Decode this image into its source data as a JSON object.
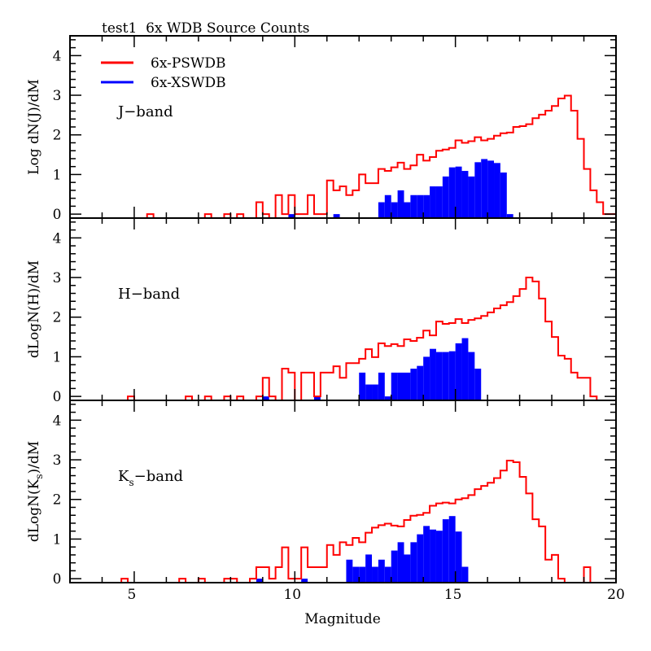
{
  "chart_data": {
    "type": "bar",
    "title": "test1  6x WDB Source Counts",
    "xlabel": "Magnitude",
    "xlim": [
      3,
      20
    ],
    "x_ticks": [
      5,
      10,
      15,
      20
    ],
    "bin_width": 0.2,
    "legend": {
      "placement": "top-left",
      "entries": [
        {
          "name": "6x-PSWDB",
          "color": "#ff0000",
          "style": "step-line"
        },
        {
          "name": "6x-XSWDB",
          "color": "#0000ff",
          "style": "filled"
        }
      ]
    },
    "panels": [
      {
        "band_label": {
          "pre": "J",
          "sub": "",
          "post": "−band"
        },
        "ylabel": {
          "pre": "Log dN(J",
          "sub": "",
          "post": ")/dM"
        },
        "ylim": [
          -0.1,
          4.5
        ],
        "y_ticks": [
          0,
          1,
          2,
          3,
          4
        ],
        "series": [
          {
            "name": "6x-PSWDB",
            "bin_starts": [
              5.4,
              7.2,
              7.8,
              8.2,
              8.8,
              9.0,
              9.4,
              9.6,
              9.8,
              10.0,
              10.2,
              10.4,
              10.6,
              10.8,
              11.0,
              11.2,
              11.4,
              11.6,
              11.8,
              12.0,
              12.2,
              12.4,
              12.6,
              12.8,
              13.0,
              13.2,
              13.4,
              13.6,
              13.8,
              14.0,
              14.2,
              14.4,
              14.6,
              14.8,
              15.0,
              15.2,
              15.4,
              15.6,
              15.8,
              16.0,
              16.2,
              16.4,
              16.6,
              16.8,
              17.0,
              17.2,
              17.4,
              17.6,
              17.8,
              18.0,
              18.2,
              18.4,
              18.6,
              18.8,
              19.0,
              19.2,
              19.4,
              19.6,
              19.8
            ],
            "values": [
              0,
              0,
              0,
              0,
              0.3,
              0,
              0.48,
              0,
              0.48,
              0,
              0,
              0.48,
              0,
              0,
              0.85,
              0.6,
              0.7,
              0.48,
              0.6,
              1.0,
              0.78,
              0.78,
              1.14,
              1.09,
              1.18,
              1.3,
              1.14,
              1.23,
              1.5,
              1.35,
              1.44,
              1.6,
              1.63,
              1.67,
              1.86,
              1.8,
              1.84,
              1.94,
              1.86,
              1.9,
              1.98,
              2.04,
              2.06,
              2.2,
              2.22,
              2.27,
              2.42,
              2.51,
              2.61,
              2.73,
              2.92,
              2.99,
              2.61,
              1.9,
              1.14,
              0.6,
              0.3,
              0,
              0
            ]
          },
          {
            "name": "6x-XSWDB",
            "bin_starts": [
              9.8,
              11.2,
              12.6,
              12.8,
              13.0,
              13.2,
              13.4,
              13.6,
              13.8,
              14.0,
              14.2,
              14.4,
              14.6,
              14.8,
              15.0,
              15.2,
              15.4,
              15.6,
              15.8,
              16.0,
              16.2,
              16.4,
              16.6
            ],
            "values": [
              0,
              0,
              0.3,
              0.48,
              0.3,
              0.6,
              0.3,
              0.48,
              0.48,
              0.48,
              0.7,
              0.7,
              0.95,
              1.18,
              1.2,
              1.09,
              0.95,
              1.31,
              1.39,
              1.35,
              1.29,
              1.05,
              0
            ]
          }
        ]
      },
      {
        "band_label": {
          "pre": "H",
          "sub": "",
          "post": "−band"
        },
        "ylabel": {
          "pre": "dLogN(H",
          "sub": "",
          "post": ")/dM"
        },
        "ylim": [
          -0.1,
          4.5
        ],
        "y_ticks": [
          0,
          1,
          2,
          3,
          4
        ],
        "series": [
          {
            "name": "6x-PSWDB",
            "bin_starts": [
              4.8,
              6.6,
              7.2,
              7.8,
              8.2,
              8.8,
              9.0,
              9.2,
              9.6,
              9.8,
              10.2,
              10.4,
              10.6,
              10.8,
              11.0,
              11.2,
              11.4,
              11.6,
              11.8,
              12.0,
              12.2,
              12.4,
              12.6,
              12.8,
              13.0,
              13.2,
              13.4,
              13.6,
              13.8,
              14.0,
              14.2,
              14.4,
              14.6,
              14.8,
              15.0,
              15.2,
              15.4,
              15.6,
              15.8,
              16.0,
              16.2,
              16.4,
              16.6,
              16.8,
              17.0,
              17.2,
              17.4,
              17.6,
              17.8,
              18.0,
              18.2,
              18.4,
              18.6,
              18.8,
              19.0,
              19.2
            ],
            "values": [
              0,
              0,
              0,
              0,
              0,
              0,
              0.47,
              0,
              0.7,
              0.6,
              0.6,
              0.6,
              0,
              0.6,
              0.6,
              0.76,
              0.47,
              0.84,
              0.84,
              0.95,
              1.19,
              0.99,
              1.34,
              1.27,
              1.32,
              1.27,
              1.44,
              1.4,
              1.48,
              1.66,
              1.54,
              1.89,
              1.83,
              1.85,
              1.95,
              1.85,
              1.93,
              1.97,
              2.03,
              2.12,
              2.22,
              2.3,
              2.38,
              2.53,
              2.71,
              3.0,
              2.9,
              2.47,
              1.89,
              1.5,
              1.03,
              0.95,
              0.6,
              0.47,
              0.47,
              0
            ]
          },
          {
            "name": "6x-XSWDB",
            "bin_starts": [
              9.0,
              10.6,
              12.0,
              12.2,
              12.4,
              12.6,
              12.8,
              13.0,
              13.2,
              13.4,
              13.6,
              13.8,
              14.0,
              14.2,
              14.4,
              14.6,
              14.8,
              15.0,
              15.2,
              15.4,
              15.6
            ],
            "values": [
              0,
              0,
              0.6,
              0.3,
              0.3,
              0.6,
              0,
              0.6,
              0.6,
              0.6,
              0.7,
              0.77,
              1.0,
              1.2,
              1.12,
              1.12,
              1.14,
              1.34,
              1.47,
              1.12,
              0.7
            ]
          }
        ]
      },
      {
        "band_label": {
          "pre": "K",
          "sub": "s",
          "post": "−band"
        },
        "ylabel": {
          "pre": "dLogN(K",
          "sub": "s",
          "post": ")/dM"
        },
        "ylim": [
          -0.1,
          4.5
        ],
        "y_ticks": [
          0,
          1,
          2,
          3,
          4
        ],
        "series": [
          {
            "name": "6x-PSWDB",
            "bin_starts": [
              4.6,
              6.4,
              7.0,
              7.8,
              8.0,
              8.6,
              8.8,
              9.0,
              9.2,
              9.4,
              9.6,
              9.8,
              10.0,
              10.2,
              10.4,
              10.6,
              10.8,
              11.0,
              11.2,
              11.4,
              11.6,
              11.8,
              12.0,
              12.2,
              12.4,
              12.6,
              12.8,
              13.0,
              13.2,
              13.4,
              13.6,
              13.8,
              14.0,
              14.2,
              14.4,
              14.6,
              14.8,
              15.0,
              15.2,
              15.4,
              15.6,
              15.8,
              16.0,
              16.2,
              16.4,
              16.6,
              16.8,
              17.0,
              17.2,
              17.4,
              17.6,
              17.8,
              18.0,
              18.2,
              19.0
            ],
            "values": [
              0,
              0,
              0,
              0,
              0,
              0,
              0.29,
              0.29,
              0,
              0.29,
              0.79,
              0,
              0,
              0.79,
              0.29,
              0.29,
              0.29,
              0.85,
              0.6,
              0.92,
              0.85,
              1.03,
              0.92,
              1.16,
              1.29,
              1.35,
              1.39,
              1.34,
              1.32,
              1.48,
              1.59,
              1.61,
              1.66,
              1.84,
              1.9,
              1.92,
              1.9,
              2.0,
              2.03,
              2.11,
              2.26,
              2.34,
              2.42,
              2.54,
              2.73,
              2.98,
              2.94,
              2.57,
              2.15,
              1.5,
              1.32,
              0.48,
              0.6,
              0,
              0.29
            ]
          },
          {
            "name": "6x-XSWDB",
            "bin_starts": [
              8.8,
              10.2,
              11.6,
              11.8,
              12.0,
              12.2,
              12.4,
              12.6,
              12.8,
              13.0,
              13.2,
              13.4,
              13.6,
              13.8,
              14.0,
              14.2,
              14.4,
              14.6,
              14.8,
              15.0,
              15.2
            ],
            "values": [
              0,
              0,
              0.48,
              0.3,
              0.3,
              0.61,
              0.3,
              0.48,
              0.3,
              0.71,
              0.92,
              0.61,
              0.92,
              1.12,
              1.33,
              1.24,
              1.21,
              1.5,
              1.58,
              1.19,
              0.3
            ]
          }
        ]
      }
    ]
  }
}
